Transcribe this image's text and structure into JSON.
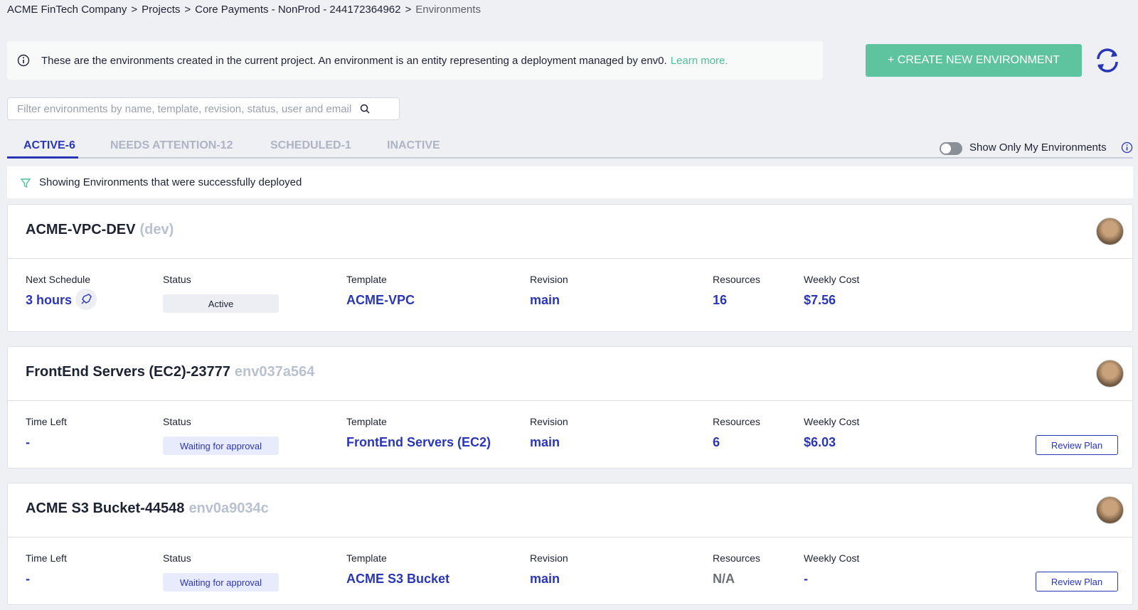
{
  "breadcrumb": {
    "items": [
      "ACME FinTech Company",
      "Projects",
      "Core Payments - NonProd - 244172364962",
      "Environments"
    ],
    "separator": ">"
  },
  "info": {
    "text": "These are the environments created in the current project. An environment is an entity representing a deployment managed by env0.",
    "link": "Learn more."
  },
  "create_button": "+ CREATE NEW ENVIRONMENT",
  "filter_placeholder": "Filter environments by name, template, revision, status, user and email",
  "tabs": [
    {
      "label": "ACTIVE-6",
      "active": true
    },
    {
      "label": "NEEDS ATTENTION-12",
      "active": false
    },
    {
      "label": "SCHEDULED-1",
      "active": false
    },
    {
      "label": "INACTIVE",
      "active": false
    }
  ],
  "toggle_label": "Show Only My Environments",
  "banner": "Showing Environments that were successfully deployed",
  "environments": [
    {
      "name": "ACME-VPC-DEV",
      "suffix": "(dev)",
      "fields": [
        {
          "label": "Next Schedule",
          "value": "3 hours"
        },
        {
          "label": "Status",
          "value": "Active"
        },
        {
          "label": "Template",
          "value": "ACME-VPC"
        },
        {
          "label": "Revision",
          "value": "main"
        },
        {
          "label": "Resources",
          "value": 16
        },
        {
          "label": "Weekly Cost",
          "value": "$7.56"
        }
      ]
    },
    {
      "name": "FrontEnd Servers (EC2)-23777",
      "suffix": "env037a564",
      "fields": [
        {
          "label": "Time Left",
          "value": "-"
        },
        {
          "label": "Status",
          "value": "Waiting for approval"
        },
        {
          "label": "Template",
          "value": "FrontEnd Servers (EC2)"
        },
        {
          "label": "Revision",
          "value": "main"
        },
        {
          "label": "Resources",
          "value": 6
        },
        {
          "label": "Weekly Cost",
          "value": "$6.03"
        }
      ],
      "action": "Review Plan"
    },
    {
      "name": "ACME S3 Bucket-44548",
      "suffix": "env0a9034c",
      "fields": [
        {
          "label": "Time Left",
          "value": "-"
        },
        {
          "label": "Status",
          "value": "Waiting for approval"
        },
        {
          "label": "Template",
          "value": "ACME S3 Bucket"
        },
        {
          "label": "Revision",
          "value": "main"
        },
        {
          "label": "Resources",
          "value": "N/A"
        },
        {
          "label": "Weekly Cost",
          "value": "-"
        }
      ],
      "action": "Review Plan"
    }
  ]
}
